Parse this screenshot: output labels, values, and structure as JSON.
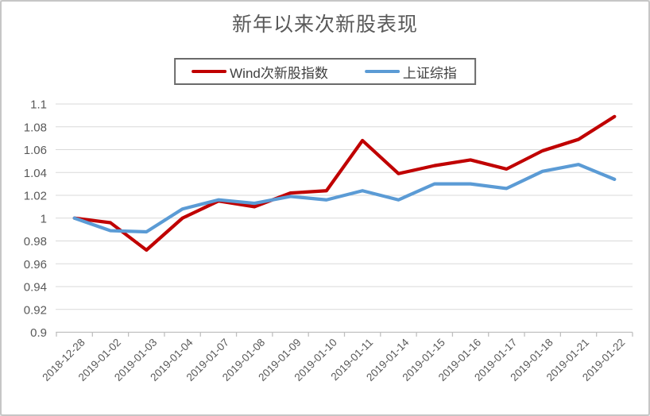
{
  "chart_data": {
    "type": "line",
    "title": "新年以来次新股表现",
    "categories": [
      "2018-12-28",
      "2019-01-02",
      "2019-01-03",
      "2019-01-04",
      "2019-01-07",
      "2019-01-08",
      "2019-01-09",
      "2019-01-10",
      "2019-01-11",
      "2019-01-14",
      "2019-01-15",
      "2019-01-16",
      "2019-01-17",
      "2019-01-18",
      "2019-01-21",
      "2019-01-22"
    ],
    "series": [
      {
        "name": "Wind次新股指数",
        "color": "#C00000",
        "values": [
          1.0,
          0.996,
          0.972,
          1.0,
          1.015,
          1.01,
          1.022,
          1.024,
          1.068,
          1.039,
          1.046,
          1.051,
          1.043,
          1.059,
          1.069,
          1.089
        ]
      },
      {
        "name": "上证综指",
        "color": "#5B9BD5",
        "values": [
          1.0,
          0.989,
          0.988,
          1.008,
          1.016,
          1.013,
          1.019,
          1.016,
          1.024,
          1.016,
          1.03,
          1.03,
          1.026,
          1.041,
          1.047,
          1.034
        ]
      }
    ],
    "ylim": [
      0.9,
      1.1
    ],
    "y_ticks": [
      "1.1",
      "1.08",
      "1.06",
      "1.04",
      "1.02",
      "1",
      "0.98",
      "0.96",
      "0.94",
      "0.92",
      "0.9"
    ],
    "xlabel": "",
    "ylabel": "",
    "grid": "horizontal",
    "legend_position": "top",
    "x_tick_rotation": -45
  },
  "colors": {
    "grid": "#D9D9D9",
    "axis": "#BFBFBF",
    "axis_text": "#595959",
    "title_text": "#595959",
    "legend_text": "#3F3F3F",
    "legend_border": "#6A6A6A",
    "frame_border": "#C6C6C6",
    "background": "#FFFFFF"
  }
}
